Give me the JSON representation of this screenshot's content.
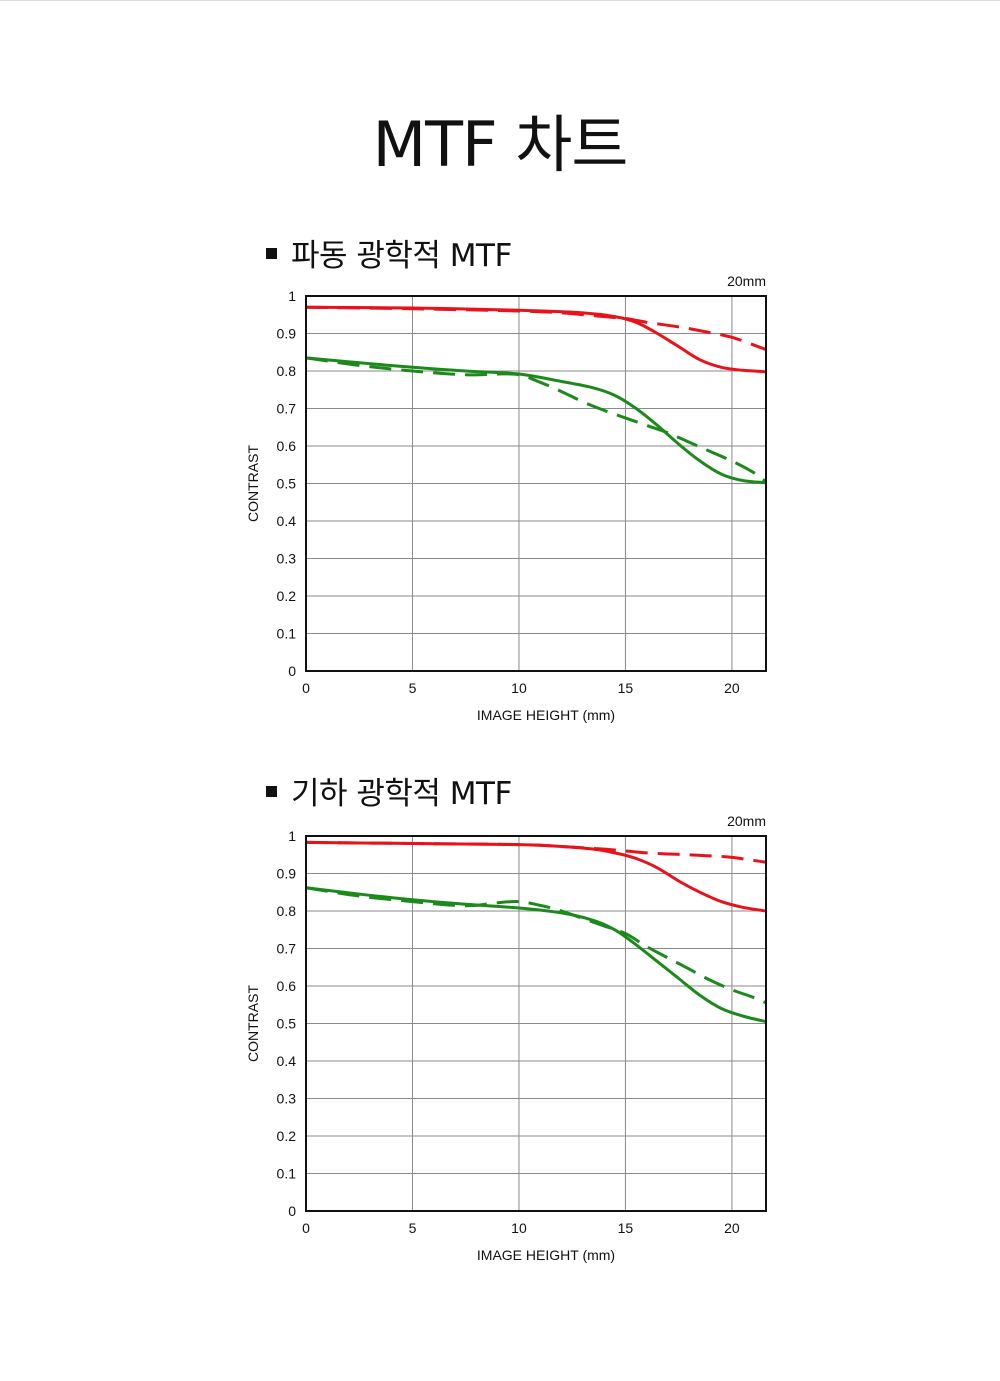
{
  "page": {
    "title": "MTF 차트"
  },
  "sections": [
    {
      "title": "파동 광학적 MTF"
    },
    {
      "title": "기하 광학적 MTF"
    }
  ],
  "colors": {
    "sagittal_high": "#e8121b",
    "meridional_low": "#1b8a1b",
    "grid": "#8a8a8a",
    "frame": "#111111"
  },
  "chart_data": [
    {
      "type": "line",
      "title": "파동 광학적 MTF",
      "focal_label": "20mm",
      "xlabel": "IMAGE HEIGHT (mm)",
      "ylabel": "CONTRAST",
      "xlim": [
        0,
        21.6
      ],
      "ylim": [
        0,
        1
      ],
      "xticks": [
        "0",
        "5",
        "10",
        "15",
        "20"
      ],
      "yticks": [
        "0",
        "0.1",
        "0.2",
        "0.3",
        "0.4",
        "0.5",
        "0.6",
        "0.7",
        "0.8",
        "0.9",
        "1"
      ],
      "grid": true,
      "series": [
        {
          "color": "red",
          "style": "solid",
          "x": [
            0,
            5,
            10,
            13,
            14.5,
            15.5,
            16.5,
            17.5,
            18.5,
            19.5,
            20.5,
            21.6
          ],
          "y": [
            0.97,
            0.968,
            0.962,
            0.955,
            0.945,
            0.93,
            0.9,
            0.865,
            0.83,
            0.81,
            0.802,
            0.798
          ]
        },
        {
          "color": "red",
          "style": "dashed",
          "x": [
            0,
            5,
            10,
            12,
            14,
            15,
            16,
            17,
            18,
            19,
            20,
            21,
            21.6
          ],
          "y": [
            0.97,
            0.966,
            0.96,
            0.955,
            0.945,
            0.94,
            0.93,
            0.922,
            0.913,
            0.902,
            0.89,
            0.87,
            0.857
          ]
        },
        {
          "color": "green",
          "style": "solid",
          "x": [
            0,
            2.5,
            5,
            7.5,
            10,
            12,
            13.5,
            14.5,
            15.5,
            16.5,
            17.5,
            18.5,
            19.5,
            20.5,
            21.6
          ],
          "y": [
            0.835,
            0.822,
            0.81,
            0.8,
            0.792,
            0.772,
            0.755,
            0.735,
            0.7,
            0.655,
            0.605,
            0.56,
            0.525,
            0.508,
            0.502
          ]
        },
        {
          "color": "green",
          "style": "dashed",
          "x": [
            0,
            2.5,
            5,
            7.5,
            9,
            10,
            11,
            12,
            13,
            14,
            15,
            16,
            17,
            18,
            19,
            20,
            21,
            21.6
          ],
          "y": [
            0.835,
            0.815,
            0.8,
            0.79,
            0.792,
            0.79,
            0.77,
            0.745,
            0.718,
            0.695,
            0.675,
            0.655,
            0.635,
            0.61,
            0.585,
            0.56,
            0.53,
            0.505
          ]
        }
      ]
    },
    {
      "type": "line",
      "title": "기하 광학적 MTF",
      "focal_label": "20mm",
      "xlabel": "IMAGE HEIGHT (mm)",
      "ylabel": "CONTRAST",
      "xlim": [
        0,
        21.6
      ],
      "ylim": [
        0,
        1
      ],
      "xticks": [
        "0",
        "5",
        "10",
        "15",
        "20"
      ],
      "yticks": [
        "0",
        "0.1",
        "0.2",
        "0.3",
        "0.4",
        "0.5",
        "0.6",
        "0.7",
        "0.8",
        "0.9",
        "1"
      ],
      "grid": true,
      "series": [
        {
          "color": "red",
          "style": "solid",
          "x": [
            0,
            5,
            10,
            12,
            13.5,
            14.5,
            15.5,
            16.5,
            17.5,
            18.5,
            19.5,
            20.5,
            21.6
          ],
          "y": [
            0.983,
            0.98,
            0.977,
            0.972,
            0.965,
            0.955,
            0.94,
            0.915,
            0.88,
            0.85,
            0.825,
            0.81,
            0.8
          ]
        },
        {
          "color": "red",
          "style": "dashed",
          "x": [
            0,
            5,
            10,
            12,
            14,
            15,
            16,
            17,
            18,
            19,
            20,
            21,
            21.6
          ],
          "y": [
            0.983,
            0.98,
            0.977,
            0.972,
            0.965,
            0.96,
            0.955,
            0.952,
            0.95,
            0.947,
            0.943,
            0.935,
            0.93
          ]
        },
        {
          "color": "green",
          "style": "solid",
          "x": [
            0,
            2.5,
            5,
            7.5,
            10,
            12,
            13.5,
            14.5,
            15.5,
            16.5,
            17.5,
            18.5,
            19.5,
            20.5,
            21.6
          ],
          "y": [
            0.862,
            0.845,
            0.83,
            0.818,
            0.808,
            0.795,
            0.775,
            0.75,
            0.71,
            0.665,
            0.62,
            0.575,
            0.54,
            0.52,
            0.505
          ]
        },
        {
          "color": "green",
          "style": "dashed",
          "x": [
            0,
            2.5,
            5,
            7,
            8,
            9,
            10,
            11,
            12,
            13,
            14,
            15,
            16,
            17,
            18,
            19,
            20,
            21,
            21.6
          ],
          "y": [
            0.862,
            0.84,
            0.825,
            0.815,
            0.815,
            0.822,
            0.825,
            0.815,
            0.8,
            0.78,
            0.76,
            0.74,
            0.705,
            0.675,
            0.645,
            0.615,
            0.59,
            0.57,
            0.555
          ]
        }
      ]
    }
  ]
}
